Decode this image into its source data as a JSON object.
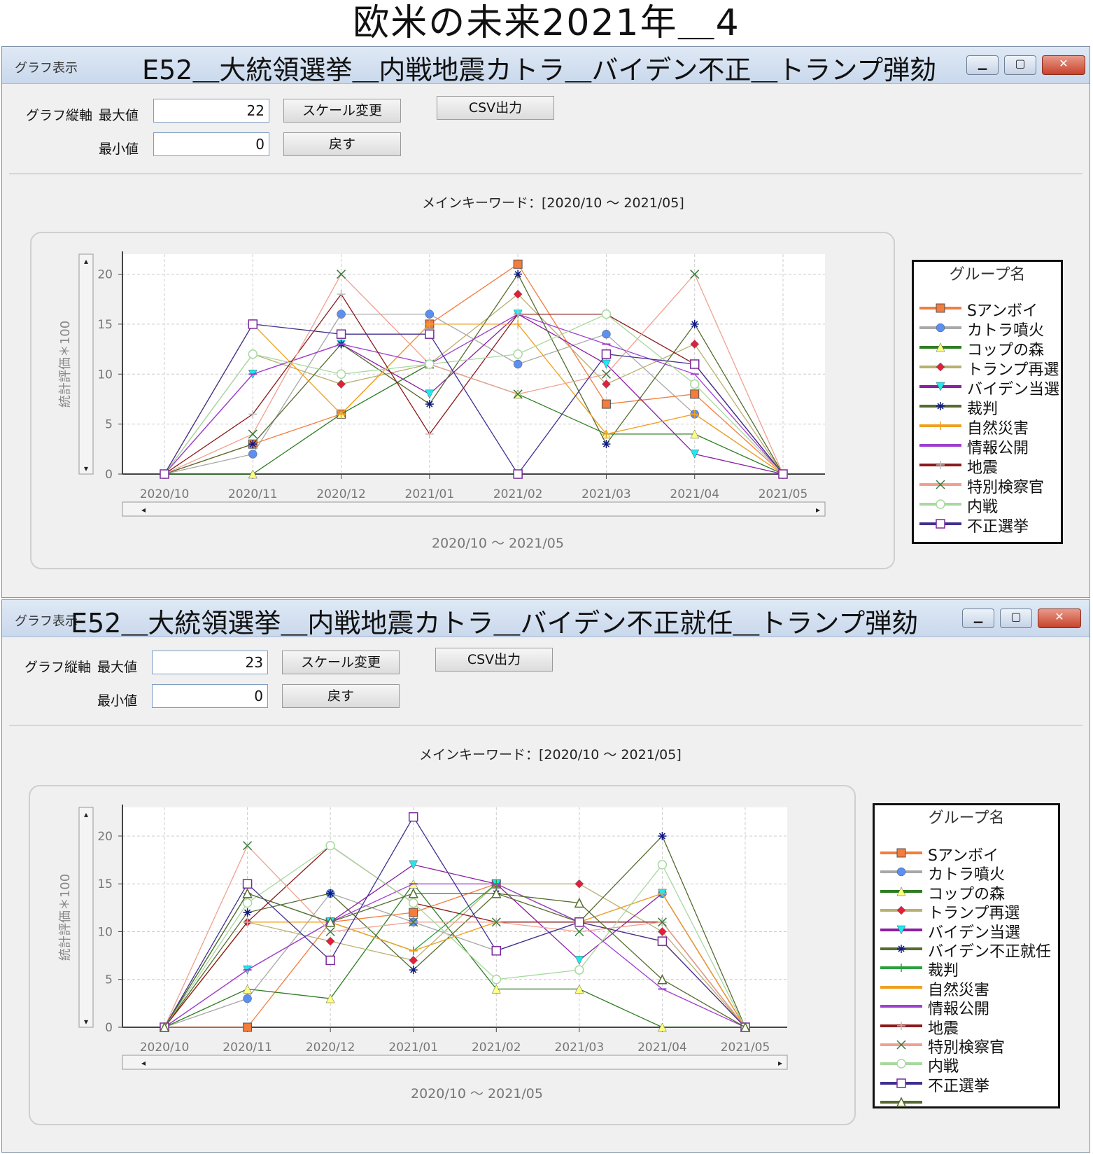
{
  "page_title": "欧米の未来2021年＿4",
  "windows": [
    {
      "title_label": "グラフ表示",
      "title": "E52＿大統領選挙＿内戦地震カトラ＿バイデン不正＿トランプ弾劾",
      "axis_label": "グラフ縦軸",
      "max_label": "最大値",
      "max_value": "22",
      "min_label": "最小値",
      "min_value": "0",
      "scale_button": "スケール変更",
      "csv_button": "CSV出力",
      "back_button": "戻す",
      "subtitle": "メインキーワード：[2020/10 〜 2021/05]",
      "x_range_label": "2020/10 〜 2021/05",
      "legend_title": "グループ名"
    },
    {
      "title_label": "グラフ表示",
      "title": "E52＿大統領選挙＿内戦地震カトラ＿バイデン不正就任＿トランプ弾劾",
      "axis_label": "グラフ縦軸",
      "max_label": "最大値",
      "max_value": "23",
      "min_label": "最小値",
      "min_value": "0",
      "scale_button": "スケール変更",
      "csv_button": "CSV出力",
      "back_button": "戻す",
      "subtitle": "メインキーワード：[2020/10 〜 2021/05]",
      "x_range_label": "2020/10 〜 2021/05",
      "legend_title": "グループ名"
    }
  ],
  "chart_data": [
    {
      "type": "line",
      "ylabel": "統計評価＊100",
      "ylim": [
        0,
        22
      ],
      "yticks": [
        0,
        5,
        10,
        15,
        20
      ],
      "categories": [
        "2020/10",
        "2020/11",
        "2020/12",
        "2021/01",
        "2021/02",
        "2021/03",
        "2021/04",
        "2021/05"
      ],
      "grid": true,
      "legend_position": "right",
      "series": [
        {
          "name": "Sアンボイ",
          "color": "#f47c3c",
          "marker": "square",
          "values": [
            0,
            3,
            6,
            15,
            21,
            7,
            8,
            0
          ]
        },
        {
          "name": "カトラ噴火",
          "color": "#a8a8a8",
          "marker": "circle",
          "markerColor": "#5b8ff0",
          "values": [
            0,
            2,
            16,
            16,
            11,
            14,
            6,
            0
          ]
        },
        {
          "name": "コップの森",
          "color": "#2e7d22",
          "marker": "triangle",
          "markerColor": "#ffff80",
          "values": [
            0,
            0,
            6,
            11,
            8,
            4,
            4,
            0
          ]
        },
        {
          "name": "トランプ再選",
          "color": "#b8b070",
          "marker": "diamond",
          "markerColor": "#e0203c",
          "values": [
            0,
            12,
            9,
            11,
            18,
            9,
            13,
            0
          ]
        },
        {
          "name": "バイデン当選",
          "color": "#8a1fa0",
          "marker": "triangle-down",
          "markerColor": "#20e8ee",
          "values": [
            0,
            10,
            13,
            8,
            16,
            11,
            2,
            0
          ]
        },
        {
          "name": "裁判",
          "color": "#556b2f",
          "marker": "asterisk",
          "markerColor": "#101880",
          "values": [
            0,
            3,
            13,
            7,
            20,
            3,
            15,
            0
          ]
        },
        {
          "name": "自然災害",
          "color": "#f0a020",
          "marker": "plus",
          "values": [
            0,
            15,
            6,
            15,
            15,
            4,
            6,
            0
          ]
        },
        {
          "name": "情報公開",
          "color": "#a040d0",
          "marker": "dash",
          "values": [
            0,
            10,
            13,
            11,
            16,
            13,
            10,
            0
          ]
        },
        {
          "name": "地震",
          "color": "#8b1a1a",
          "marker": "plus",
          "markerColor": "#bbbbbb",
          "values": [
            0,
            6,
            18,
            4,
            16,
            16,
            11,
            0
          ]
        },
        {
          "name": "特別検察官",
          "color": "#f0a090",
          "marker": "x",
          "markerColor": "#3a7a3a",
          "values": [
            0,
            4,
            20,
            11,
            8,
            10,
            20,
            0
          ]
        },
        {
          "name": "内戦",
          "color": "#a8d8a0",
          "marker": "circle-open",
          "values": [
            0,
            12,
            10,
            11,
            12,
            16,
            9,
            0
          ]
        },
        {
          "name": "不正選挙",
          "color": "#403090",
          "marker": "square-open",
          "markerColor": "#7a2a9a",
          "values": [
            0,
            15,
            14,
            14,
            0,
            12,
            11,
            0
          ]
        }
      ]
    },
    {
      "type": "line",
      "ylabel": "統計評価＊100",
      "ylim": [
        0,
        23
      ],
      "yticks": [
        0,
        5,
        10,
        15,
        20
      ],
      "categories": [
        "2020/10",
        "2020/11",
        "2020/12",
        "2021/01",
        "2021/02",
        "2021/03",
        "2021/04",
        "2021/05"
      ],
      "grid": true,
      "legend_position": "right",
      "series": [
        {
          "name": "Sアンボイ",
          "color": "#f47c3c",
          "marker": "square",
          "values": [
            0,
            0,
            11,
            12,
            15,
            11,
            9,
            0
          ]
        },
        {
          "name": "カトラ噴火",
          "color": "#a8a8a8",
          "marker": "circle",
          "markerColor": "#5b8ff0",
          "values": [
            0,
            3,
            14,
            11,
            8,
            11,
            14,
            0
          ]
        },
        {
          "name": "コップの森",
          "color": "#2e7d22",
          "marker": "triangle",
          "markerColor": "#ffff80",
          "values": [
            0,
            4,
            3,
            15,
            4,
            4,
            0,
            0
          ]
        },
        {
          "name": "トランプ再選",
          "color": "#b8b070",
          "marker": "diamond",
          "markerColor": "#e0203c",
          "values": [
            0,
            11,
            9,
            7,
            15,
            15,
            10,
            0
          ]
        },
        {
          "name": "バイデン当選",
          "color": "#8a1fa0",
          "marker": "triangle-down",
          "markerColor": "#20e8ee",
          "values": [
            0,
            6,
            11,
            17,
            15,
            7,
            14,
            0
          ]
        },
        {
          "name": "バイデン不正就任",
          "color": "#556b2f",
          "marker": "asterisk",
          "markerColor": "#101880",
          "values": [
            0,
            12,
            14,
            6,
            14,
            11,
            20,
            0
          ]
        },
        {
          "name": "裁判",
          "color": "#2aa040",
          "marker": "plus",
          "values": [
            0,
            14,
            11,
            8,
            15,
            11,
            11,
            0
          ]
        },
        {
          "name": "自然災害",
          "color": "#f0a020",
          "marker": "dash",
          "values": [
            0,
            11,
            11,
            8,
            11,
            11,
            14,
            0
          ]
        },
        {
          "name": "情報公開",
          "color": "#a040d0",
          "marker": "dash",
          "values": [
            0,
            6,
            11,
            15,
            15,
            11,
            4,
            0
          ]
        },
        {
          "name": "地震",
          "color": "#8b1a1a",
          "marker": "plus",
          "markerColor": "#bbbbbb",
          "values": [
            0,
            11,
            19,
            13,
            11,
            11,
            11,
            0
          ]
        },
        {
          "name": "特別検察官",
          "color": "#f0a090",
          "marker": "x",
          "markerColor": "#3a7a3a",
          "values": [
            0,
            19,
            10,
            11,
            11,
            10,
            11,
            0
          ]
        },
        {
          "name": "内戦",
          "color": "#a8d8a0",
          "marker": "circle-open",
          "values": [
            0,
            13,
            19,
            13,
            5,
            6,
            17,
            0
          ]
        },
        {
          "name": "不正選挙",
          "color": "#403090",
          "marker": "square-open",
          "markerColor": "#7a2a9a",
          "values": [
            0,
            15,
            7,
            22,
            8,
            11,
            9,
            0
          ]
        },
        {
          "name": "",
          "color": "#556b2f",
          "marker": "triangle-open",
          "values": [
            0,
            14,
            11,
            14,
            14,
            13,
            5,
            0
          ]
        }
      ]
    }
  ]
}
